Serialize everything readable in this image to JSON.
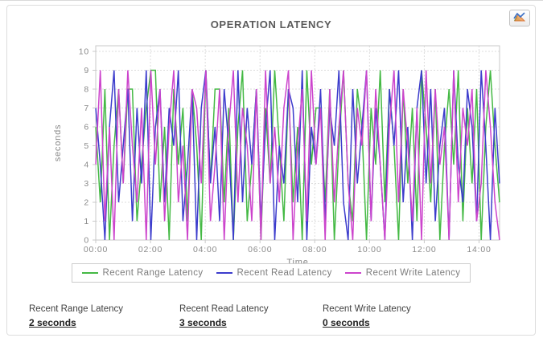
{
  "header": {
    "title": "OPERATION LATENCY"
  },
  "toolbar": {
    "chart_options_icon": "line-chart-icon"
  },
  "chart_data": {
    "type": "line",
    "title": "OPERATION LATENCY",
    "xlabel": "Time",
    "ylabel": "seconds",
    "ylim": [
      0,
      10
    ],
    "x_hours_range": [
      0,
      14.75
    ],
    "x_ticks": [
      "00:00",
      "02:00",
      "04:00",
      "06:00",
      "08:00",
      "10:00",
      "12:00",
      "14:00"
    ],
    "y_ticks": [
      0,
      1,
      2,
      3,
      4,
      5,
      6,
      7,
      8,
      9,
      10
    ],
    "sample_interval_minutes": 10,
    "grid": true,
    "legend_position": "bottom",
    "series": [
      {
        "name": "Recent Range Latency",
        "color": "#44b944",
        "values": [
          6,
          2,
          8,
          0,
          5,
          8,
          3,
          8,
          8,
          1,
          4,
          7,
          9,
          9,
          2,
          6,
          0,
          8,
          4,
          7,
          1,
          8,
          5,
          0,
          9,
          3,
          8,
          8,
          2,
          7,
          0,
          6,
          9,
          1,
          4,
          8,
          0,
          7,
          3,
          9,
          5,
          1,
          8,
          2,
          6,
          0,
          9,
          4,
          7,
          7,
          2,
          8,
          0,
          5,
          9,
          3,
          1,
          8,
          6,
          0,
          7,
          4,
          9,
          2,
          8,
          5,
          0,
          8,
          3,
          7,
          1,
          9,
          6,
          2,
          8,
          0,
          5,
          8,
          4,
          9,
          1,
          7,
          3,
          8,
          0,
          6,
          9,
          5,
          2
        ]
      },
      {
        "name": "Recent Read Latency",
        "color": "#3c3ccc",
        "values": [
          7,
          4,
          0,
          6,
          9,
          2,
          5,
          8,
          1,
          7,
          3,
          9,
          0,
          6,
          8,
          2,
          7,
          5,
          9,
          1,
          4,
          8,
          0,
          7,
          9,
          3,
          6,
          1,
          8,
          5,
          0,
          9,
          2,
          7,
          4,
          8,
          1,
          6,
          9,
          0,
          5,
          3,
          8,
          7,
          2,
          9,
          0,
          6,
          4,
          8,
          1,
          7,
          5,
          9,
          2,
          0,
          8,
          3,
          6,
          9,
          1,
          7,
          4,
          0,
          8,
          5,
          9,
          2,
          6,
          0,
          7,
          9,
          3,
          8,
          1,
          5,
          7,
          0,
          9,
          4,
          2,
          8,
          6,
          1,
          9,
          5,
          0,
          7,
          3
        ]
      },
      {
        "name": "Recent Write Latency",
        "color": "#cc44cc",
        "values": [
          4,
          9,
          1,
          6,
          0,
          8,
          3,
          9,
          5,
          2,
          7,
          0,
          9,
          4,
          8,
          1,
          6,
          9,
          2,
          5,
          0,
          8,
          7,
          3,
          9,
          1,
          4,
          8,
          0,
          6,
          9,
          2,
          7,
          5,
          1,
          8,
          0,
          9,
          3,
          6,
          2,
          7,
          9,
          0,
          5,
          8,
          1,
          9,
          4,
          7,
          0,
          8,
          2,
          6,
          9,
          3,
          0,
          7,
          5,
          9,
          1,
          8,
          4,
          0,
          6,
          9,
          2,
          8,
          5,
          1,
          7,
          0,
          9,
          3,
          8,
          4,
          6,
          0,
          9,
          2,
          7,
          5,
          8,
          1,
          3,
          9,
          6,
          2,
          0
        ]
      }
    ]
  },
  "stats": [
    {
      "label": "Recent Range Latency",
      "value": "2 seconds"
    },
    {
      "label": "Recent Read Latency",
      "value": "3 seconds"
    },
    {
      "label": "Recent Write Latency",
      "value": "0 seconds"
    }
  ],
  "theme": {
    "grid_color": "#dcdcdc",
    "plot_border_color": "#c9c9c9",
    "tick_label_color": "#8a8a8a",
    "axis_title_color": "#888888"
  }
}
